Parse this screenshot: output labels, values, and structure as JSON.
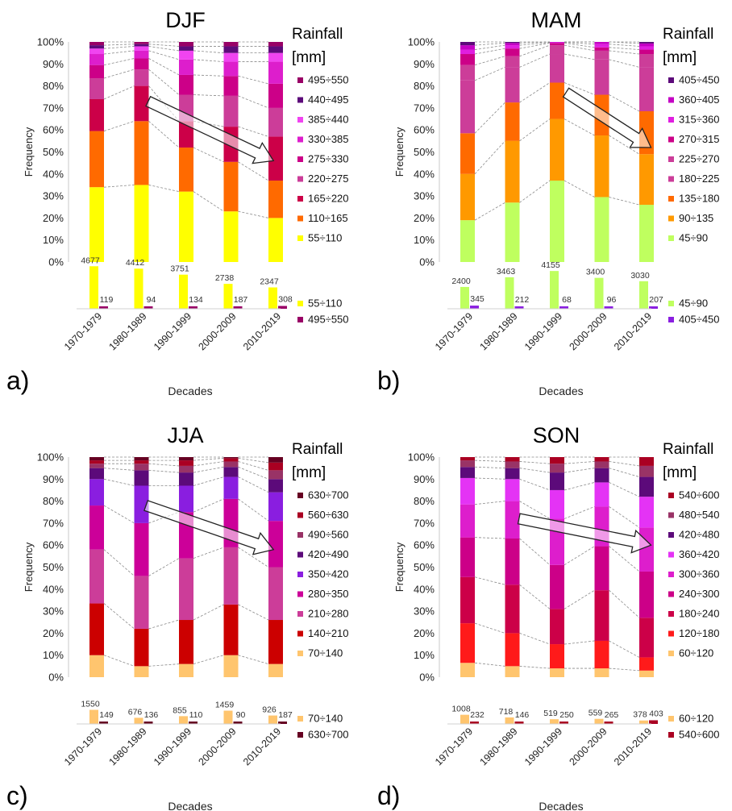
{
  "shared": {
    "ylabel": "Frequency",
    "xlabel": "Decades",
    "legend_title_line1": "Rainfall",
    "legend_title_line2": "[mm]",
    "decades": [
      "1970-1979",
      "1980-1989",
      "1990-1999",
      "2000-2009",
      "2010-2019"
    ],
    "yticks": [
      "0%",
      "10%",
      "20%",
      "30%",
      "40%",
      "50%",
      "60%",
      "70%",
      "80%",
      "90%",
      "100%"
    ]
  },
  "chart_data": [
    {
      "panel": "a)",
      "title": "DJF",
      "type": "stacked-bar-100",
      "ylim": [
        0,
        100
      ],
      "categories": [
        "1970-1979",
        "1980-1989",
        "1990-1999",
        "2000-2009",
        "2010-2019"
      ],
      "series": [
        {
          "name": "55÷110",
          "color": "#ffff00",
          "values": [
            34,
            35,
            32,
            23,
            20
          ]
        },
        {
          "name": "110÷165",
          "color": "#ff6a00",
          "values": [
            25.5,
            29,
            20,
            22.5,
            17
          ]
        },
        {
          "name": "165÷220",
          "color": "#cc0048",
          "values": [
            14.5,
            16,
            12,
            16,
            20
          ]
        },
        {
          "name": "220÷275",
          "color": "#cc3d99",
          "values": [
            9.5,
            7.5,
            12,
            14,
            13
          ]
        },
        {
          "name": "275÷330",
          "color": "#cc0088",
          "values": [
            6,
            5,
            9,
            9,
            11
          ]
        },
        {
          "name": "330÷385",
          "color": "#dd1ecc",
          "values": [
            5,
            3.5,
            7,
            6.5,
            10
          ]
        },
        {
          "name": "385÷440",
          "color": "#f044f0",
          "values": [
            2.5,
            2,
            4,
            4,
            4
          ]
        },
        {
          "name": "440÷495",
          "color": "#5c0a7a",
          "values": [
            1.5,
            1,
            2,
            3,
            3
          ]
        },
        {
          "name": "495÷550",
          "color": "#990066",
          "values": [
            1.5,
            1,
            2,
            2,
            2
          ]
        }
      ],
      "counts": {
        "series": [
          {
            "name": "55÷110",
            "color": "#ffff00",
            "values": [
              4677,
              4412,
              3751,
              2738,
              2347
            ]
          },
          {
            "name": "495÷550",
            "color": "#990066",
            "values": [
              119,
              94,
              134,
              187,
              308
            ]
          }
        ]
      },
      "arrow": {
        "from": [
          1.15,
          73
        ],
        "to": [
          3.95,
          46
        ]
      }
    },
    {
      "panel": "b)",
      "title": "MAM",
      "type": "stacked-bar-100",
      "ylim": [
        0,
        100
      ],
      "categories": [
        "1970-1979",
        "1980-1989",
        "1990-1999",
        "2000-2009",
        "2010-2019"
      ],
      "series": [
        {
          "name": "45÷90",
          "color": "#bfff5f",
          "values": [
            19,
            27,
            37,
            29.5,
            26
          ]
        },
        {
          "name": "90÷135",
          "color": "#ff9900",
          "values": [
            21,
            28,
            28,
            28,
            23
          ]
        },
        {
          "name": "135÷180",
          "color": "#ff6a00",
          "values": [
            18.5,
            17.5,
            16.5,
            18.5,
            19.5
          ]
        },
        {
          "name": "180÷225",
          "color": "#cc3d99",
          "values": [
            24,
            16,
            13,
            16,
            20
          ]
        },
        {
          "name": "225÷270",
          "color": "#cc3d99",
          "values": [
            7,
            5,
            4,
            4,
            6
          ]
        },
        {
          "name": "270÷315",
          "color": "#cc0088",
          "values": [
            5,
            3.5,
            1,
            1.5,
            2
          ]
        },
        {
          "name": "315÷360",
          "color": "#e01ee0",
          "values": [
            2,
            1.5,
            0.3,
            1.5,
            1.5
          ]
        },
        {
          "name": "360÷405",
          "color": "#c400c4",
          "values": [
            2,
            1,
            0.2,
            1,
            1.3
          ]
        },
        {
          "name": "405÷450",
          "color": "#5c0a7a",
          "values": [
            1.5,
            0.5,
            0,
            0,
            0.7
          ]
        }
      ],
      "counts": {
        "series": [
          {
            "name": "45÷90",
            "color": "#bfff5f",
            "values": [
              2400,
              3463,
              4155,
              3400,
              3030
            ]
          },
          {
            "name": "405÷450",
            "color": "#8a1ee0",
            "values": [
              345,
              212,
              68,
              96,
              207
            ]
          }
        ]
      },
      "arrow": {
        "from": [
          2.2,
          77
        ],
        "to": [
          4.1,
          52
        ]
      }
    },
    {
      "panel": "c)",
      "title": "JJA",
      "type": "stacked-bar-100",
      "ylim": [
        0,
        100
      ],
      "categories": [
        "1970-1979",
        "1980-1989",
        "1990-1999",
        "2000-2009",
        "2010-2019"
      ],
      "series": [
        {
          "name": "70÷140",
          "color": "#ffc56e",
          "values": [
            10,
            5,
            6,
            10,
            6
          ]
        },
        {
          "name": "140÷210",
          "color": "#cc0000",
          "values": [
            23.5,
            17,
            20,
            23,
            20
          ]
        },
        {
          "name": "210÷280",
          "color": "#cc3d99",
          "values": [
            24.5,
            24,
            28,
            26,
            24
          ]
        },
        {
          "name": "280÷350",
          "color": "#cc0099",
          "values": [
            20,
            24,
            21,
            22,
            21
          ]
        },
        {
          "name": "350÷420",
          "color": "#8a1ee0",
          "values": [
            12,
            17,
            12,
            10,
            13
          ]
        },
        {
          "name": "420÷490",
          "color": "#5c0a7a",
          "values": [
            5,
            7,
            6,
            4.5,
            6
          ]
        },
        {
          "name": "490÷560",
          "color": "#993366",
          "values": [
            2,
            3,
            3,
            2.5,
            4
          ]
        },
        {
          "name": "560÷630",
          "color": "#aa0022",
          "values": [
            1.5,
            1.5,
            2.5,
            1.5,
            3.5
          ]
        },
        {
          "name": "630÷700",
          "color": "#660022",
          "values": [
            1.5,
            1.5,
            1.5,
            0.5,
            2.5
          ]
        }
      ],
      "counts": {
        "series": [
          {
            "name": "70÷140",
            "color": "#ffc56e",
            "values": [
              1550,
              676,
              855,
              1459,
              926
            ]
          },
          {
            "name": "630÷700",
            "color": "#660022",
            "values": [
              149,
              136,
              110,
              90,
              187
            ]
          }
        ]
      },
      "arrow": {
        "from": [
          1.1,
          78
        ],
        "to": [
          3.95,
          58
        ]
      }
    },
    {
      "panel": "d)",
      "title": "SON",
      "type": "stacked-bar-100",
      "ylim": [
        0,
        100
      ],
      "categories": [
        "1970-1979",
        "1980-1989",
        "1990-1999",
        "2000-2009",
        "2010-2019"
      ],
      "series": [
        {
          "name": "60÷120",
          "color": "#ffc56e",
          "values": [
            6.5,
            5,
            4,
            4,
            3
          ]
        },
        {
          "name": "120÷180",
          "color": "#ff1a1a",
          "values": [
            18,
            15,
            11,
            12.5,
            6
          ]
        },
        {
          "name": "180÷240",
          "color": "#cc0048",
          "values": [
            21,
            22,
            16,
            23,
            18
          ]
        },
        {
          "name": "240÷300",
          "color": "#cc0088",
          "values": [
            18,
            21,
            20,
            20,
            21
          ]
        },
        {
          "name": "300÷360",
          "color": "#dd1ecc",
          "values": [
            15,
            17,
            21,
            18,
            20
          ]
        },
        {
          "name": "360÷420",
          "color": "#e433f5",
          "values": [
            12,
            10,
            13,
            11,
            14
          ]
        },
        {
          "name": "420÷480",
          "color": "#5c0a7a",
          "values": [
            5,
            5,
            8,
            6.5,
            9
          ]
        },
        {
          "name": "480÷540",
          "color": "#993366",
          "values": [
            3,
            3,
            4,
            3,
            5
          ]
        },
        {
          "name": "540÷600",
          "color": "#aa0022",
          "values": [
            1.5,
            2,
            3,
            2,
            4
          ]
        }
      ],
      "counts": {
        "series": [
          {
            "name": "60÷120",
            "color": "#ffc56e",
            "values": [
              1008,
              718,
              519,
              559,
              378
            ]
          },
          {
            "name": "540÷600",
            "color": "#aa0022",
            "values": [
              232,
              146,
              250,
              265,
              403
            ]
          }
        ]
      },
      "arrow": {
        "from": [
          1.15,
          72
        ],
        "to": [
          4.1,
          60
        ]
      }
    }
  ]
}
